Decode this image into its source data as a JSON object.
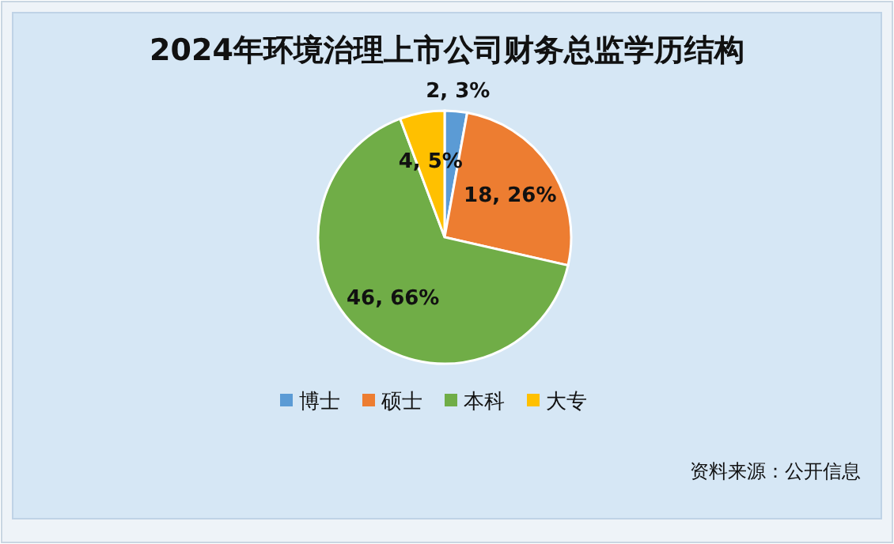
{
  "chart_data": {
    "type": "pie",
    "title": "2024年环境治理上市公司财务总监学历结构",
    "categories": [
      "博士",
      "硕士",
      "本科",
      "大专"
    ],
    "values": [
      2,
      18,
      46,
      4
    ],
    "value_labels": [
      "2, 3%",
      "18, 26%",
      "46, 66%",
      "4, 5%"
    ],
    "colors": [
      "#5b9bd5",
      "#ed7d31",
      "#70ad47",
      "#ffc000"
    ],
    "legend": "bottom",
    "annotations": [
      "资料来源：公开信息"
    ]
  }
}
